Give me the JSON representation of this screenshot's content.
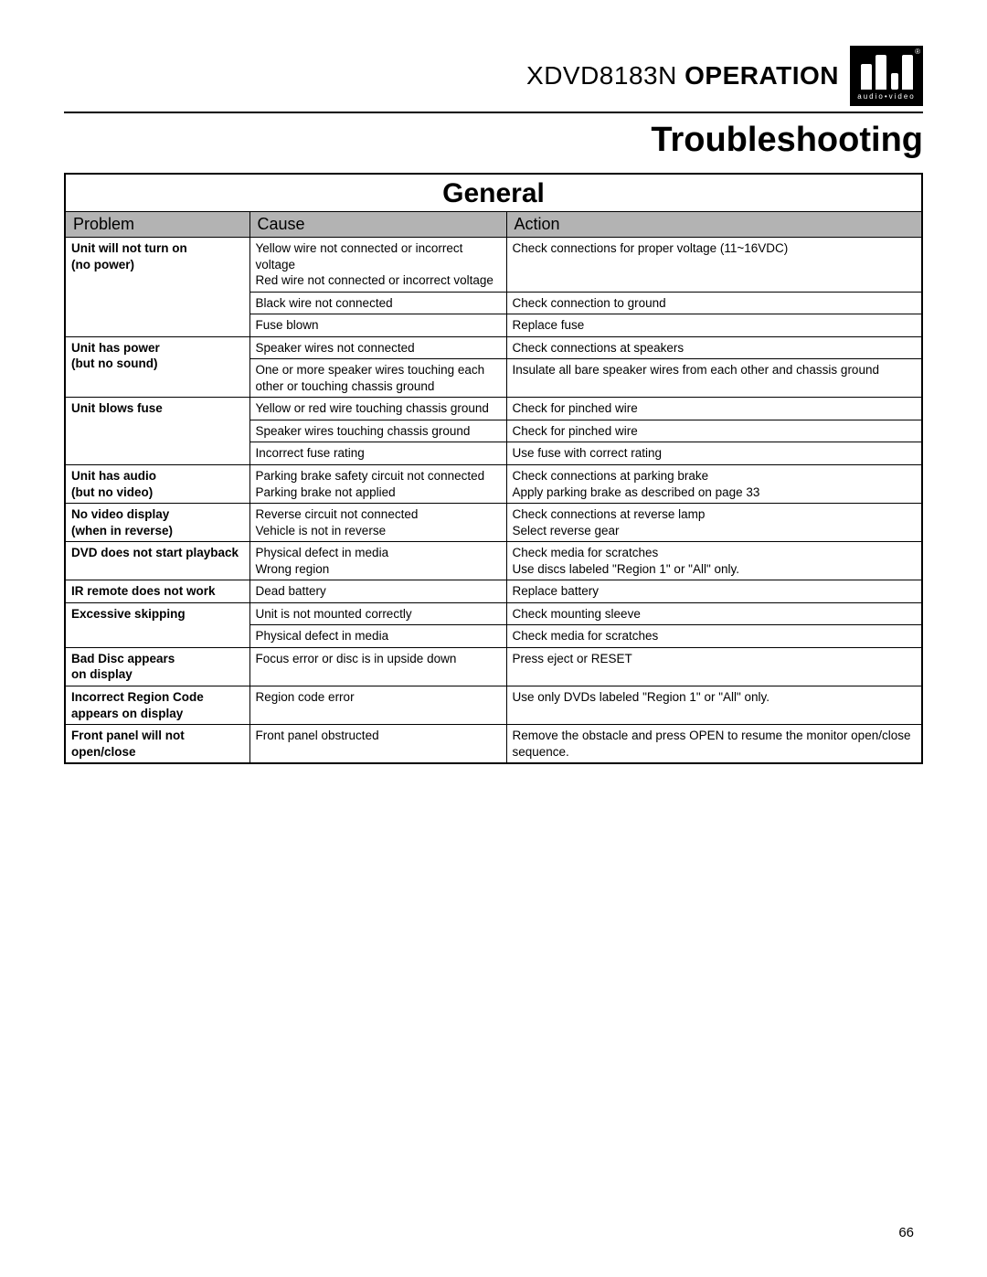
{
  "header": {
    "model": "XDVD8183N",
    "suffix": "OPERATION",
    "logo_sub": "audio•video",
    "logo_reg": "®"
  },
  "section_title": "Troubleshooting",
  "table": {
    "caption": "General",
    "columns": [
      "Problem",
      "Cause",
      "Action"
    ],
    "groups": [
      {
        "problem": [
          "Unit will not turn on",
          "(no power)"
        ],
        "rows": [
          {
            "cause": "Yellow wire not connected or incorrect voltage\nRed wire not connected or incorrect voltage",
            "action": "Check connections for proper voltage (11~16VDC)"
          },
          {
            "cause": "Black wire not connected",
            "action": "Check connection to ground"
          },
          {
            "cause": "Fuse blown",
            "action": "Replace fuse"
          }
        ]
      },
      {
        "problem": [
          "Unit has power",
          "(but no sound)"
        ],
        "rows": [
          {
            "cause": "Speaker wires not connected",
            "action": "Check connections at speakers"
          },
          {
            "cause": "One or more speaker wires touching each other or touching chassis ground",
            "action": "Insulate all bare speaker wires from each other and chassis ground"
          }
        ]
      },
      {
        "problem": [
          "Unit blows fuse"
        ],
        "rows": [
          {
            "cause": "Yellow or red wire touching chassis ground",
            "action": "Check for pinched wire"
          },
          {
            "cause": "Speaker wires touching chassis ground",
            "action": "Check for pinched wire"
          },
          {
            "cause": "Incorrect fuse rating",
            "action": "Use fuse with correct rating"
          }
        ]
      },
      {
        "problem": [
          "Unit has audio",
          "(but no video)"
        ],
        "rows": [
          {
            "cause": "Parking brake safety circuit not connected\nParking brake not applied",
            "action": "Check connections at parking brake\nApply parking brake as described on page 33"
          }
        ]
      },
      {
        "problem": [
          "No video display",
          "(when in reverse)"
        ],
        "rows": [
          {
            "cause": "Reverse circuit not connected\nVehicle is not in reverse",
            "action": "Check connections at reverse lamp\nSelect reverse gear"
          }
        ]
      },
      {
        "problem": [
          "DVD does not start playback"
        ],
        "rows": [
          {
            "cause": "Physical defect in media\nWrong region",
            "action": "Check media for scratches\nUse discs labeled \"Region 1\" or \"All\" only."
          }
        ]
      },
      {
        "problem": [
          "IR remote does not work"
        ],
        "rows": [
          {
            "cause": "Dead battery",
            "action": "Replace battery"
          }
        ]
      },
      {
        "problem": [
          "Excessive skipping"
        ],
        "rows": [
          {
            "cause": "Unit is not mounted correctly",
            "action": "Check mounting sleeve"
          },
          {
            "cause": "Physical defect in media",
            "action": "Check media for scratches"
          }
        ]
      },
      {
        "problem": [
          "Bad Disc appears",
          "on display"
        ],
        "rows": [
          {
            "cause": "Focus error or disc is in upside down",
            "action": "Press eject or RESET"
          }
        ]
      },
      {
        "problem": [
          "Incorrect Region Code",
          "appears on display"
        ],
        "rows": [
          {
            "cause": "Region code error",
            "action": "Use only DVDs labeled \"Region 1\" or \"All\" only."
          }
        ]
      },
      {
        "problem": [
          "Front panel will not",
          "open/close"
        ],
        "rows": [
          {
            "cause": "Front panel obstructed",
            "action": "Remove the obstacle and press OPEN to resume the monitor open/close sequence."
          }
        ]
      }
    ]
  },
  "page_number": "66",
  "colors": {
    "header_bg": "#b3b3b3",
    "border": "#000000",
    "text": "#000000",
    "page_bg": "#ffffff",
    "logo_bg": "#000000"
  }
}
